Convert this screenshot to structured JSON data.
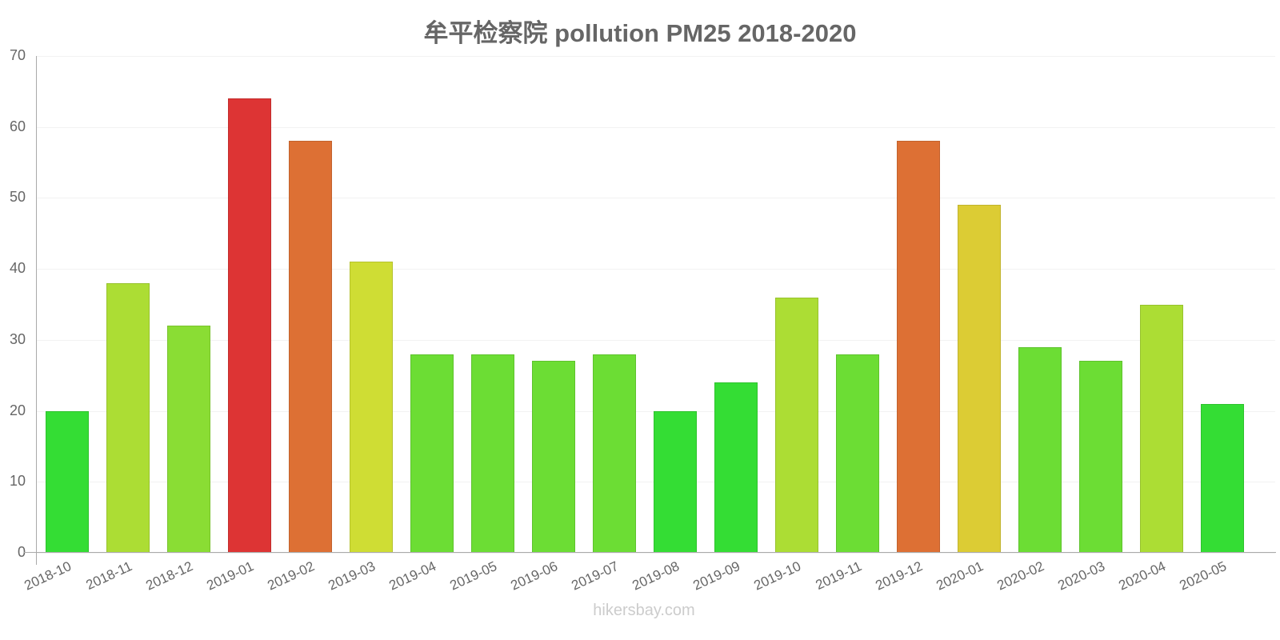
{
  "header": {
    "title": "牟平检察院 pollution PM25 2018-2020"
  },
  "footer": {
    "watermark": "hikersbay.com"
  },
  "axis": {
    "y_ticks": [
      "0",
      "10",
      "20",
      "30",
      "40",
      "50",
      "60",
      "70"
    ]
  },
  "chart_data": {
    "type": "bar",
    "title": "牟平检察院 pollution PM25 2018-2020",
    "xlabel": "",
    "ylabel": "",
    "ylim": [
      0,
      70
    ],
    "grid": true,
    "legend": "none",
    "categories": [
      "2018-10",
      "2018-11",
      "2018-12",
      "2019-01",
      "2019-02",
      "2019-03",
      "2019-04",
      "2019-05",
      "2019-06",
      "2019-07",
      "2019-08",
      "2019-09",
      "2019-10",
      "2019-11",
      "2019-12",
      "2020-01",
      "2020-02",
      "2020-03",
      "2020-04",
      "2020-05"
    ],
    "values": [
      20,
      38,
      32,
      64,
      58,
      41,
      28,
      28,
      27,
      28,
      20,
      24,
      36,
      28,
      58,
      49,
      29,
      27,
      35,
      21
    ],
    "colors": [
      "#34dd34",
      "#acdd34",
      "#8add34",
      "#dd3434",
      "#dd7034",
      "#cfdd34",
      "#6cdd34",
      "#6cdd34",
      "#6cdd34",
      "#6cdd34",
      "#34dd34",
      "#34dd34",
      "#acdd34",
      "#6cdd34",
      "#dd7034",
      "#dccc34",
      "#6cdd34",
      "#6cdd34",
      "#acdd34",
      "#34dd34"
    ]
  }
}
